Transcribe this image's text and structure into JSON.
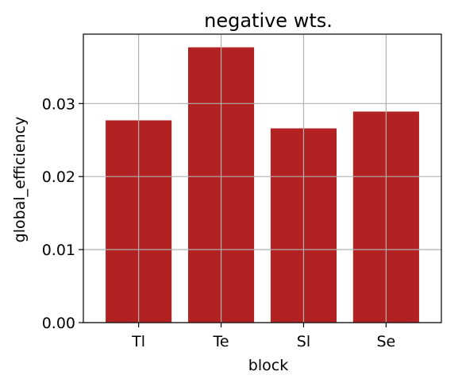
{
  "chart_data": {
    "type": "bar",
    "title": "negative wts.",
    "xlabel": "block",
    "ylabel": "global_efficiency",
    "categories": [
      "Tl",
      "Te",
      "Sl",
      "Se"
    ],
    "values": [
      0.0277,
      0.0377,
      0.0266,
      0.0289
    ],
    "ylim": [
      0,
      0.0395
    ],
    "yticks": [
      0.0,
      0.01,
      0.02,
      0.03
    ],
    "ytick_labels": [
      "0.00",
      "0.01",
      "0.02",
      "0.03"
    ],
    "grid": true,
    "bar_color": "#b22222",
    "grid_color": "#b0b0b0"
  }
}
